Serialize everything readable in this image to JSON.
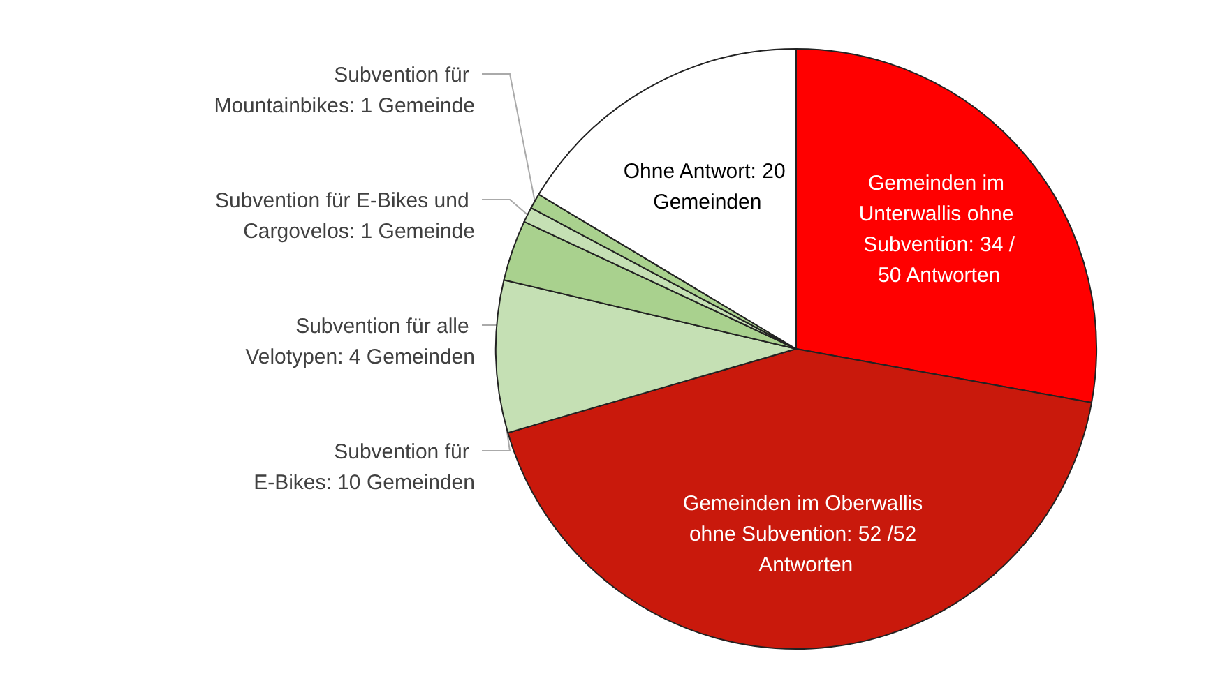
{
  "chart_data": {
    "type": "pie",
    "categories": [
      "Gemeinden im Unterwallis ohne Subvention",
      "Gemeinden im Oberwallis ohne Subvention",
      "Subvention für E-Bikes",
      "Subvention für alle Velotypen",
      "Subvention für E-Bikes und Cargovelos",
      "Subvention für Mountainbikes",
      "Ohne Antwort"
    ],
    "values": [
      34,
      52,
      10,
      4,
      1,
      1,
      20
    ],
    "value_labels": [
      "34 /50 Antworten",
      "52 /52 Antworten",
      "10 Gemeinden",
      "4 Gemeinden",
      "1 Gemeinde",
      "1 Gemeinde",
      "20 Gemeinden"
    ],
    "colors": [
      "#ff0000",
      "#c9190c",
      "#c5e0b4",
      "#a9d18e",
      "#c5e0b4",
      "#a9d18e",
      "#ffffff"
    ],
    "legend": false
  }
}
